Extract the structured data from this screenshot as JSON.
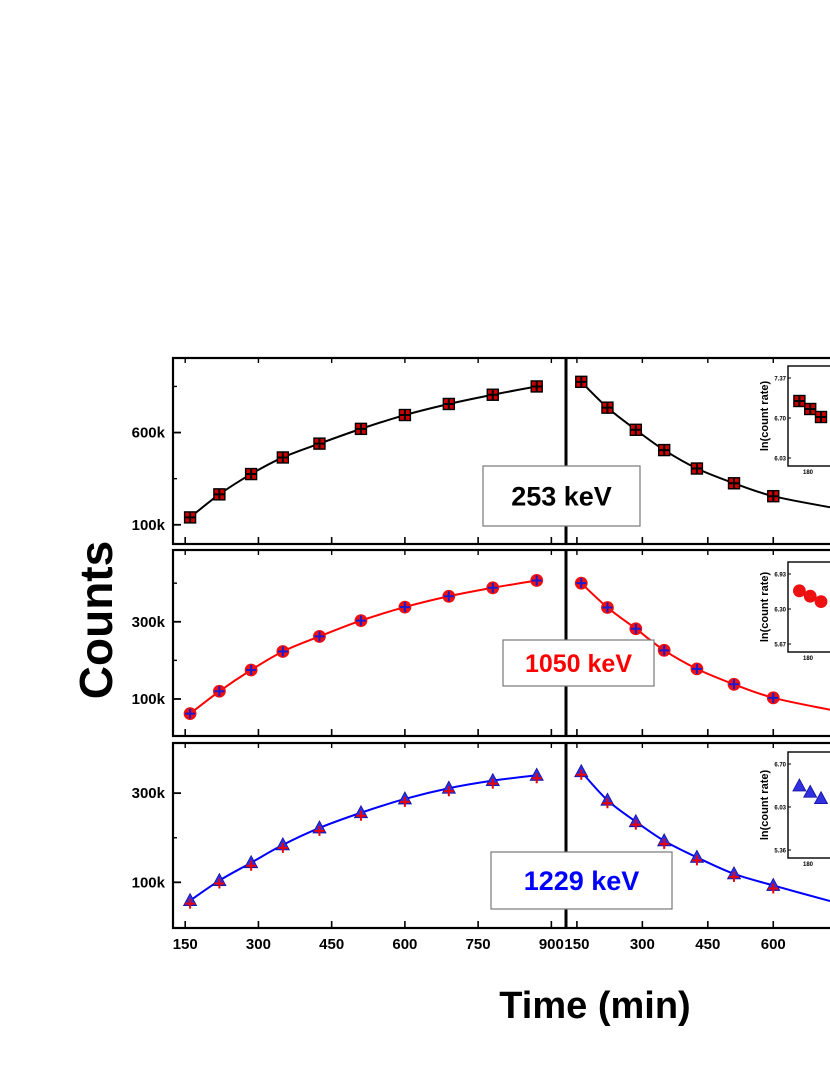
{
  "figure": {
    "ylabel": "Counts",
    "xlabel": "Time (min)"
  },
  "chart_data": [
    {
      "type": "line",
      "panel": "253 keV",
      "panel_label": "253 keV",
      "label_color": "#000000",
      "line_color": "#000000",
      "marker": "square",
      "marker_fill": "#cc0000",
      "overlay_marker": "cross",
      "overlay_color": "#000000",
      "ylim": [
        50000,
        950000
      ],
      "yticks": [
        {
          "value": 100000,
          "label": "100k"
        },
        {
          "value": 600000,
          "label": "600k"
        }
      ],
      "rise": {
        "xlim": [
          125,
          930
        ],
        "xticks": [
          150,
          300,
          450,
          600,
          750,
          900
        ],
        "x": [
          160,
          220,
          285,
          350,
          425,
          510,
          600,
          690,
          780,
          870
        ],
        "y": [
          140000,
          265000,
          375000,
          465000,
          540000,
          620000,
          695000,
          755000,
          805000,
          850000
        ]
      },
      "decay": {
        "xlim": [
          125,
          730
        ],
        "xticks": [
          150,
          300,
          450,
          600
        ],
        "x": [
          160,
          220,
          285,
          350,
          425,
          510,
          600
        ],
        "y": [
          875000,
          735000,
          615000,
          505000,
          405000,
          325000,
          255000
        ],
        "fit_end": {
          "x": 730,
          "y": 195000
        }
      },
      "inset": {
        "ylabel": "ln(count rate)",
        "yticks": [
          "7.37",
          "6.70",
          "6.03"
        ],
        "xticks": [
          "180"
        ],
        "points": [
          [
            0.15,
            0.65
          ],
          [
            0.45,
            0.57
          ],
          [
            0.75,
            0.49
          ]
        ]
      }
    },
    {
      "type": "line",
      "panel": "1050 keV",
      "panel_label": "1050 keV",
      "label_color": "#ff0000",
      "line_color": "#ff0000",
      "marker": "circle",
      "marker_fill": "#ee1111",
      "overlay_marker": "cross",
      "overlay_color": "#1a1ad0",
      "ylim": [
        30000,
        460000
      ],
      "yticks": [
        {
          "value": 100000,
          "label": "100k"
        },
        {
          "value": 300000,
          "label": "300k"
        }
      ],
      "rise": {
        "xlim": [
          125,
          930
        ],
        "xticks": [
          150,
          300,
          450,
          600,
          750,
          900
        ],
        "x": [
          160,
          220,
          285,
          350,
          425,
          510,
          600,
          690,
          780,
          870
        ],
        "y": [
          62000,
          120000,
          175000,
          223000,
          262000,
          303000,
          338000,
          366000,
          388000,
          407000
        ]
      },
      "decay": {
        "xlim": [
          125,
          730
        ],
        "xticks": [
          150,
          300,
          450,
          600
        ],
        "x": [
          160,
          220,
          285,
          350,
          425,
          510,
          600
        ],
        "y": [
          400000,
          337000,
          282000,
          226000,
          178000,
          138000,
          103000
        ],
        "fit_end": {
          "x": 730,
          "y": 72000
        }
      },
      "inset": {
        "ylabel": "ln(count rate)",
        "yticks": [
          "6.93",
          "6.30",
          "5.67"
        ],
        "xticks": [
          "180"
        ],
        "points": [
          [
            0.15,
            0.68
          ],
          [
            0.45,
            0.62
          ],
          [
            0.75,
            0.56
          ]
        ]
      }
    },
    {
      "type": "line",
      "panel": "1229 keV",
      "panel_label": "1229 keV",
      "label_color": "#0000ff",
      "line_color": "#0000ff",
      "marker": "triangle",
      "marker_fill": "#3030e0",
      "overlay_marker": "cross",
      "overlay_color": "#ee0000",
      "ylim": [
        20000,
        390000
      ],
      "yticks": [
        {
          "value": 100000,
          "label": "100k"
        },
        {
          "value": 300000,
          "label": "300k"
        }
      ],
      "rise": {
        "xlim": [
          125,
          930
        ],
        "xticks": [
          150,
          300,
          450,
          600,
          750,
          900
        ],
        "x": [
          160,
          220,
          285,
          350,
          425,
          510,
          600,
          690,
          780,
          870
        ],
        "y": [
          59000,
          104000,
          144000,
          184000,
          222000,
          256000,
          287000,
          311000,
          328000,
          340000
        ]
      },
      "decay": {
        "xlim": [
          125,
          730
        ],
        "xticks": [
          150,
          300,
          450,
          600
        ],
        "x": [
          160,
          220,
          285,
          350,
          425,
          510,
          600
        ],
        "y": [
          348000,
          284000,
          236000,
          193000,
          156000,
          119000,
          93000
        ],
        "fit_end": {
          "x": 730,
          "y": 58000
        }
      },
      "inset": {
        "ylabel": "ln(count rate)",
        "yticks": [
          "6.70",
          "6.03",
          "5.36"
        ],
        "xticks": [
          "180"
        ],
        "points": [
          [
            0.15,
            0.68
          ],
          [
            0.45,
            0.62
          ],
          [
            0.75,
            0.56
          ]
        ]
      }
    }
  ]
}
